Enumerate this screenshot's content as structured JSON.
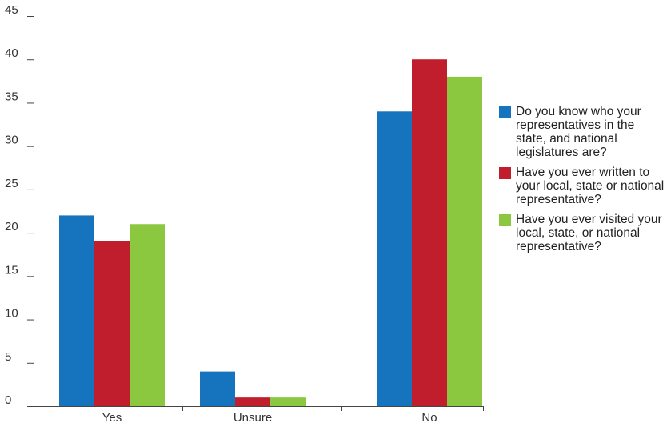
{
  "chart_data": {
    "type": "bar",
    "title": "",
    "xlabel": "",
    "ylabel": "",
    "categories": [
      "Yes",
      "Unsure",
      "No"
    ],
    "ylim": [
      0,
      45
    ],
    "yticks": [
      0,
      5,
      10,
      15,
      20,
      25,
      30,
      35,
      40,
      45
    ],
    "grid": false,
    "legend_position": "right",
    "series": [
      {
        "name": "Do you know who your representatives in the state, and national legislatures are?",
        "values": [
          22,
          4,
          34
        ],
        "color": "#1674be"
      },
      {
        "name": "Have you ever written to your local, state or national representative?",
        "values": [
          19,
          1,
          40
        ],
        "color": "#c01e2d"
      },
      {
        "name": "Have you ever visited your local, state, or national representative?",
        "values": [
          21,
          1,
          38
        ],
        "color": "#8cc83f"
      }
    ]
  }
}
